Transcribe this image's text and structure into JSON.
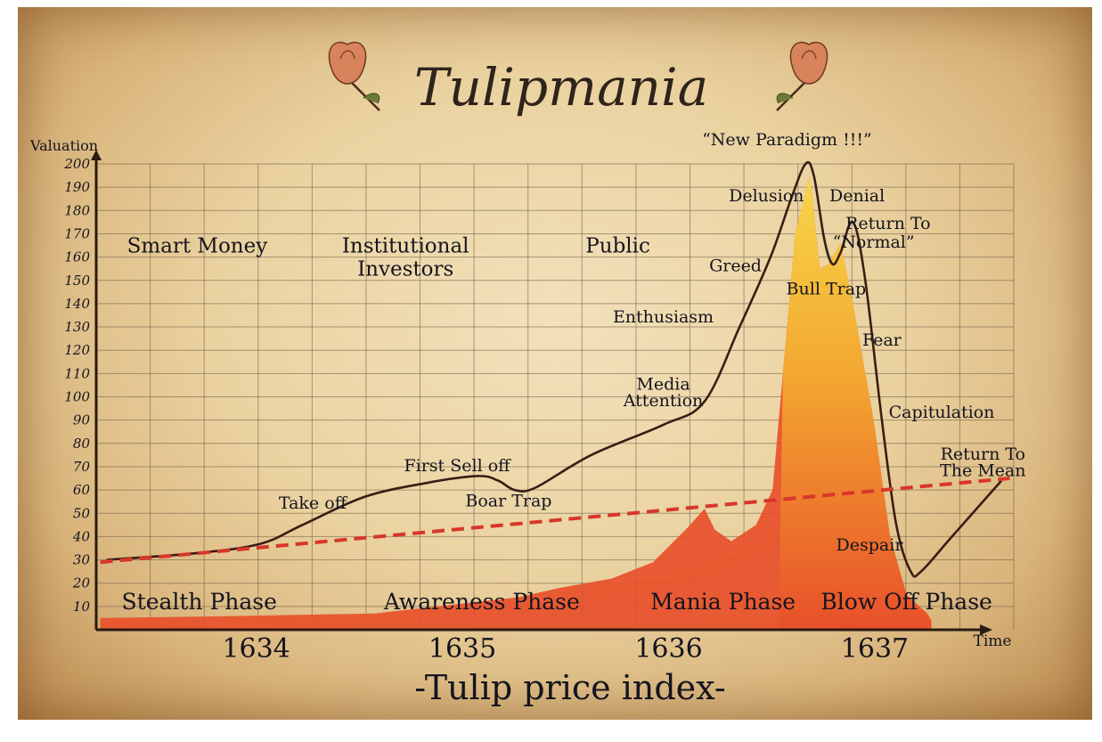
{
  "chart_data": {
    "type": "area",
    "title": "Tulipmania",
    "xlabel": "-Tulip price index-",
    "x_axis_end_label": "Time",
    "ylabel": "Valuation",
    "ylim": [
      0,
      200
    ],
    "yticks": [
      10,
      20,
      30,
      40,
      50,
      60,
      70,
      80,
      90,
      100,
      110,
      120,
      130,
      140,
      150,
      160,
      170,
      180,
      190,
      200
    ],
    "xticks": [
      {
        "label": "1634",
        "x": 1634.0
      },
      {
        "label": "1635",
        "x": 1635.0
      },
      {
        "label": "1636",
        "x": 1636.0
      },
      {
        "label": "1637",
        "x": 1637.0
      }
    ],
    "xlim": [
      1633.25,
      1637.7
    ],
    "grid": true,
    "series": [
      {
        "style": "filled-area",
        "color": "#e8502a",
        "points": [
          [
            1633.27,
            5
          ],
          [
            1634.0,
            6
          ],
          [
            1634.6,
            7
          ],
          [
            1635.3,
            14
          ],
          [
            1635.5,
            18
          ],
          [
            1635.75,
            22
          ],
          [
            1635.95,
            29
          ],
          [
            1636.12,
            44
          ],
          [
            1636.2,
            52
          ],
          [
            1636.25,
            43
          ],
          [
            1636.33,
            38
          ],
          [
            1636.45,
            45
          ],
          [
            1636.53,
            60
          ],
          [
            1636.58,
            110
          ],
          [
            1636.64,
            170
          ],
          [
            1636.71,
            195
          ],
          [
            1636.76,
            155
          ],
          [
            1636.8,
            157
          ],
          [
            1636.86,
            166
          ],
          [
            1636.93,
            135
          ],
          [
            1637.02,
            90
          ],
          [
            1637.1,
            40
          ],
          [
            1637.18,
            15
          ],
          [
            1637.28,
            7
          ],
          [
            1637.3,
            4
          ]
        ]
      },
      {
        "style": "solid-line",
        "color": "#3a1d14",
        "points": [
          [
            1633.3,
            30
          ],
          [
            1633.75,
            33
          ],
          [
            1634.05,
            37
          ],
          [
            1634.25,
            45
          ],
          [
            1634.55,
            57
          ],
          [
            1634.85,
            63
          ],
          [
            1635.1,
            66
          ],
          [
            1635.2,
            64
          ],
          [
            1635.28,
            60
          ],
          [
            1635.38,
            61
          ],
          [
            1635.65,
            75
          ],
          [
            1636.0,
            88
          ],
          [
            1636.2,
            98
          ],
          [
            1636.37,
            130
          ],
          [
            1636.52,
            160
          ],
          [
            1636.62,
            185
          ],
          [
            1636.69,
            200
          ],
          [
            1636.73,
            195
          ],
          [
            1636.78,
            168
          ],
          [
            1636.82,
            157
          ],
          [
            1636.86,
            162
          ],
          [
            1636.92,
            175
          ],
          [
            1636.98,
            150
          ],
          [
            1637.06,
            90
          ],
          [
            1637.13,
            45
          ],
          [
            1637.2,
            25
          ],
          [
            1637.25,
            25
          ],
          [
            1637.4,
            40
          ],
          [
            1637.64,
            64
          ]
        ]
      },
      {
        "style": "dashed-line",
        "color": "#d7372a",
        "points": [
          [
            1633.27,
            29
          ],
          [
            1637.68,
            65
          ]
        ]
      }
    ],
    "annotations": [
      {
        "text": "“New Paradigm !!!”",
        "x": 1636.6,
        "y": 208
      },
      {
        "text": "Delusion",
        "x": 1636.5,
        "y": 184
      },
      {
        "text": "Denial",
        "x": 1636.94,
        "y": 184
      },
      {
        "text": "Return To",
        "x": 1637.09,
        "y": 172
      },
      {
        "text": "“Normal”",
        "x": 1637.02,
        "y": 164
      },
      {
        "text": "Greed",
        "x": 1636.35,
        "y": 154
      },
      {
        "text": "Bull Trap",
        "x": 1636.79,
        "y": 144
      },
      {
        "text": "Enthusiasm",
        "x": 1636.0,
        "y": 132
      },
      {
        "text": "Fear",
        "x": 1637.06,
        "y": 122
      },
      {
        "text": "Media",
        "x": 1636.0,
        "y": 103
      },
      {
        "text": "Attention",
        "x": 1636.0,
        "y": 96
      },
      {
        "text": "Capitulation",
        "x": 1637.35,
        "y": 91
      },
      {
        "text": "First Sell off",
        "x": 1635.0,
        "y": 68
      },
      {
        "text": "Return To",
        "x": 1637.55,
        "y": 73
      },
      {
        "text": "The Mean",
        "x": 1637.55,
        "y": 66
      },
      {
        "text": "Boar Trap",
        "x": 1635.25,
        "y": 53
      },
      {
        "text": "Take off",
        "x": 1634.3,
        "y": 52
      },
      {
        "text": "Despair",
        "x": 1637.0,
        "y": 34
      }
    ],
    "phases": [
      {
        "label": "Stealth Phase",
        "x": 1633.75
      },
      {
        "label": "Awareness Phase",
        "x": 1635.12
      },
      {
        "label": "Mania Phase",
        "x": 1636.29
      },
      {
        "label": "Blow Off Phase",
        "x": 1637.18
      }
    ],
    "investor_groups": [
      {
        "label": "Smart Money",
        "lines": [
          "Smart Money"
        ],
        "x": 1633.74
      },
      {
        "label": "Institutional Investors",
        "lines": [
          "Institutional",
          "Investors"
        ],
        "x": 1634.75
      },
      {
        "label": "Public",
        "lines": [
          "Public"
        ],
        "x": 1635.78
      }
    ]
  }
}
